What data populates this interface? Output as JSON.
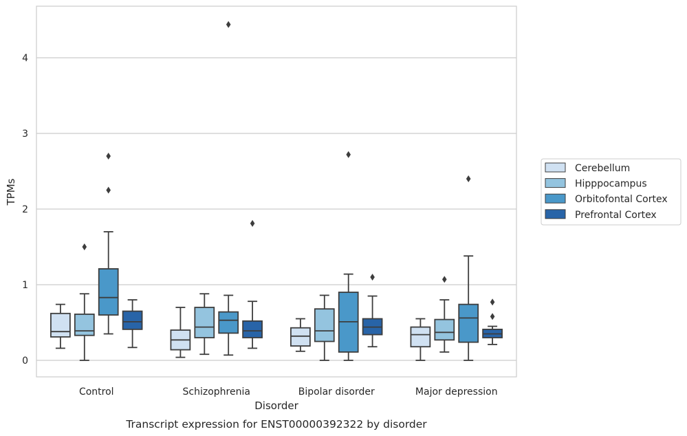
{
  "chart_data": {
    "type": "box",
    "title": "Transcript expression for ENST00000392322 by disorder",
    "xlabel": "Disorder",
    "ylabel": "TPMs",
    "ylim": [
      -0.22,
      4.7
    ],
    "yticks": [
      0,
      1,
      2,
      3,
      4
    ],
    "grid": true,
    "legend_position": "right",
    "categories": [
      "Control",
      "Schizophrenia",
      "Bipolar disorder",
      "Major depression"
    ],
    "series": [
      {
        "name": "Cerebellum",
        "color": "#d0e1f2",
        "boxes": [
          {
            "whisker_low": 0.16,
            "q1": 0.31,
            "median": 0.38,
            "q3": 0.62,
            "whisker_high": 0.74,
            "outliers": []
          },
          {
            "whisker_low": 0.04,
            "q1": 0.14,
            "median": 0.27,
            "q3": 0.4,
            "whisker_high": 0.7,
            "outliers": []
          },
          {
            "whisker_low": 0.12,
            "q1": 0.19,
            "median": 0.32,
            "q3": 0.43,
            "whisker_high": 0.55,
            "outliers": []
          },
          {
            "whisker_low": 0.0,
            "q1": 0.18,
            "median": 0.34,
            "q3": 0.44,
            "whisker_high": 0.55,
            "outliers": []
          }
        ]
      },
      {
        "name": "Hipppocampus",
        "color": "#94c4df",
        "boxes": [
          {
            "whisker_low": 0.0,
            "q1": 0.33,
            "median": 0.39,
            "q3": 0.61,
            "whisker_high": 0.88,
            "outliers": [
              1.5
            ]
          },
          {
            "whisker_low": 0.08,
            "q1": 0.3,
            "median": 0.44,
            "q3": 0.7,
            "whisker_high": 0.88,
            "outliers": []
          },
          {
            "whisker_low": 0.0,
            "q1": 0.25,
            "median": 0.39,
            "q3": 0.68,
            "whisker_high": 0.86,
            "outliers": []
          },
          {
            "whisker_low": 0.11,
            "q1": 0.27,
            "median": 0.37,
            "q3": 0.54,
            "whisker_high": 0.8,
            "outliers": [
              1.07
            ]
          }
        ]
      },
      {
        "name": "Orbitofontal Cortex",
        "color": "#4a98c9",
        "boxes": [
          {
            "whisker_low": 0.35,
            "q1": 0.6,
            "median": 0.83,
            "q3": 1.21,
            "whisker_high": 1.7,
            "outliers": [
              2.25,
              2.7
            ]
          },
          {
            "whisker_low": 0.07,
            "q1": 0.36,
            "median": 0.53,
            "q3": 0.64,
            "whisker_high": 0.86,
            "outliers": [
              4.44
            ]
          },
          {
            "whisker_low": 0.0,
            "q1": 0.11,
            "median": 0.51,
            "q3": 0.9,
            "whisker_high": 1.14,
            "outliers": [
              2.72
            ]
          },
          {
            "whisker_low": 0.0,
            "q1": 0.24,
            "median": 0.56,
            "q3": 0.74,
            "whisker_high": 1.38,
            "outliers": [
              2.4
            ]
          }
        ]
      },
      {
        "name": "Prefrontal Cortex",
        "color": "#2864a8",
        "boxes": [
          {
            "whisker_low": 0.17,
            "q1": 0.41,
            "median": 0.51,
            "q3": 0.65,
            "whisker_high": 0.8,
            "outliers": []
          },
          {
            "whisker_low": 0.16,
            "q1": 0.3,
            "median": 0.39,
            "q3": 0.52,
            "whisker_high": 0.78,
            "outliers": [
              1.81
            ]
          },
          {
            "whisker_low": 0.18,
            "q1": 0.34,
            "median": 0.44,
            "q3": 0.55,
            "whisker_high": 0.85,
            "outliers": [
              1.1
            ]
          },
          {
            "whisker_low": 0.21,
            "q1": 0.3,
            "median": 0.35,
            "q3": 0.41,
            "whisker_high": 0.45,
            "outliers": [
              0.58,
              0.77
            ]
          }
        ]
      }
    ]
  }
}
